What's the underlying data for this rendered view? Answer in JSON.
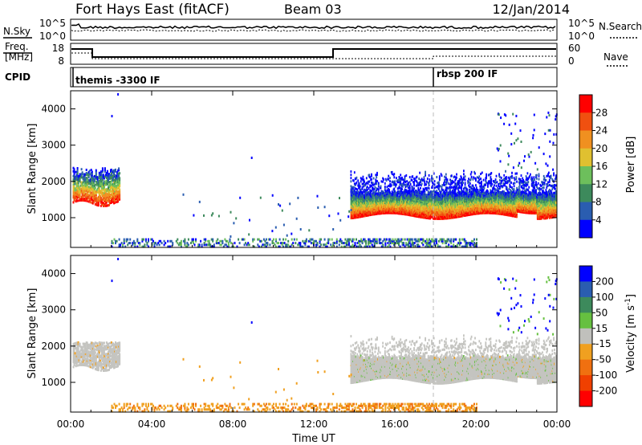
{
  "header": {
    "radar": "Fort Hays East (fitACF)",
    "beam": "Beam 03",
    "date": "12/Jan/2014"
  },
  "noise_panel": {
    "left_label": "N.Sky",
    "right_label": "N.Search",
    "left_ticks": [
      "10^5",
      "10^0"
    ],
    "right_ticks": [
      "10^5",
      "10^0"
    ]
  },
  "freq_panel": {
    "left_label_1": "Freq.",
    "left_label_2": "[MHz]",
    "left_ticks": [
      "18",
      "8"
    ],
    "right_label": "Nave",
    "right_ticks": [
      "60",
      "0"
    ]
  },
  "cpid_panel": {
    "label": "CPID",
    "modes": [
      {
        "name": "themis -3300 IF",
        "start_hour": 0
      },
      {
        "name": "rbsp 200 IF",
        "start_hour": 18
      }
    ]
  },
  "time_axis": {
    "label": "Time UT",
    "ticks": [
      "00:00",
      "04:00",
      "08:00",
      "12:00",
      "16:00",
      "20:00",
      "00:00"
    ]
  },
  "chart_data": [
    {
      "type": "heatmap",
      "title": "",
      "xlabel": "Time UT",
      "ylabel": "Slant Range [km]",
      "xlim": [
        0,
        24
      ],
      "ylim": [
        180,
        4500
      ],
      "y_ticks": [
        1000,
        2000,
        3000,
        4000
      ],
      "colorbar": {
        "label": "Power [dB]",
        "ticks": [
          4,
          8,
          12,
          16,
          20,
          24,
          28
        ],
        "range": [
          0,
          30
        ],
        "colors": [
          "#0000ff",
          "#2a5db0",
          "#3d8a5c",
          "#6dbf5c",
          "#e0c030",
          "#f09020",
          "#f05010",
          "#ff0000"
        ]
      },
      "regions": [
        {
          "feature": "echo patch",
          "t_start": 0.1,
          "t_end": 2.4,
          "range_low": 1400,
          "range_high": 2300
        },
        {
          "feature": "main backscatter band",
          "t_start": 13.8,
          "t_end": 24.0,
          "range_low": 1000,
          "range_high": 1800
        },
        {
          "feature": "upper echoes",
          "t_start": 14.0,
          "t_end": 23.0,
          "range_low": 1800,
          "range_high": 2300
        },
        {
          "feature": "near-range echoes",
          "t_start": 2.0,
          "t_end": 20.0,
          "range_low": 200,
          "range_high": 450
        },
        {
          "feature": "high-range echoes",
          "t_start": 21.0,
          "t_end": 24.0,
          "range_low": 2400,
          "range_high": 4000
        }
      ]
    },
    {
      "type": "heatmap",
      "title": "",
      "xlabel": "Time UT",
      "ylabel": "Slant Range [km]",
      "xlim": [
        0,
        24
      ],
      "ylim": [
        180,
        4500
      ],
      "y_ticks": [
        1000,
        2000,
        3000,
        4000
      ],
      "colorbar": {
        "label": "Velocity [m s^-1]",
        "ticks": [
          200,
          100,
          50,
          15,
          -15,
          -50,
          -100,
          -200
        ],
        "colors": [
          "#0000ff",
          "#2a5db0",
          "#3d8a5c",
          "#66c040",
          "#c0c0bc",
          "#f0a020",
          "#f07010",
          "#f04000",
          "#ff0000"
        ]
      },
      "regions": [
        {
          "feature": "ground scatter patch",
          "t_start": 0.1,
          "t_end": 2.4,
          "range_low": 1400,
          "range_high": 2100
        },
        {
          "feature": "ground scatter band",
          "t_start": 13.8,
          "t_end": 24.0,
          "range_low": 1000,
          "range_high": 2100
        },
        {
          "feature": "near-range echoes",
          "t_start": 2.0,
          "t_end": 20.0,
          "range_low": 200,
          "range_high": 450
        }
      ]
    }
  ]
}
